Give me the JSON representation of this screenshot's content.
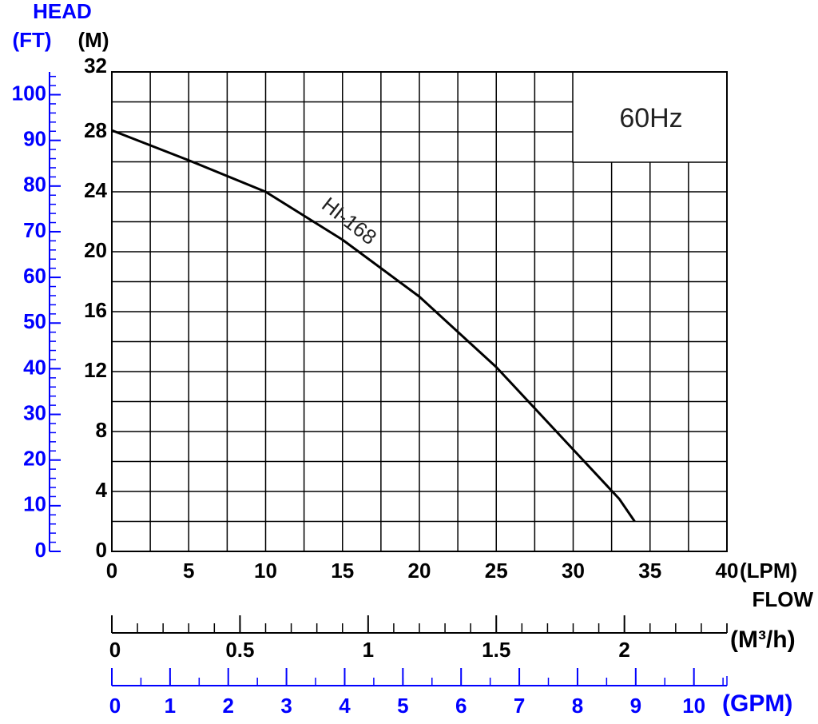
{
  "chart_data": {
    "type": "line",
    "head_label": "HEAD",
    "y_label": "(M)",
    "y2_label": "(FT)",
    "x_unit": "(LPM)",
    "x_label": "FLOW",
    "annotation": "60Hz",
    "x": [
      0,
      5,
      10,
      15,
      20,
      25,
      30,
      33,
      34
    ],
    "series": [
      {
        "name": "HI-168",
        "color": "#000000",
        "values": [
          28.1,
          26.1,
          24,
          20.8,
          17,
          12.3,
          6.8,
          3.5,
          2
        ]
      }
    ],
    "xlim": [
      0,
      40
    ],
    "xticks": [
      0,
      5,
      10,
      15,
      20,
      25,
      30,
      35,
      40
    ],
    "ylim": [
      0,
      32
    ],
    "yticks": [
      0,
      4,
      8,
      12,
      16,
      20,
      24,
      28,
      32
    ],
    "y2lim": [
      0,
      104.99
    ],
    "y2ticks": [
      0,
      10,
      20,
      30,
      40,
      50,
      60,
      70,
      80,
      90,
      100
    ],
    "y2color": "#0000ff",
    "grid": true,
    "secondary_x": [
      {
        "label": "(M³/h)",
        "lim": [
          0,
          2.4
        ],
        "ticks": [
          0,
          0.5,
          1,
          1.5,
          2
        ],
        "color": "#000000"
      },
      {
        "label": "(GPM)",
        "lim": [
          0,
          10.567
        ],
        "ticks": [
          0,
          1,
          2,
          3,
          4,
          5,
          6,
          7,
          8,
          9,
          10
        ],
        "color": "#0000ff"
      }
    ]
  }
}
